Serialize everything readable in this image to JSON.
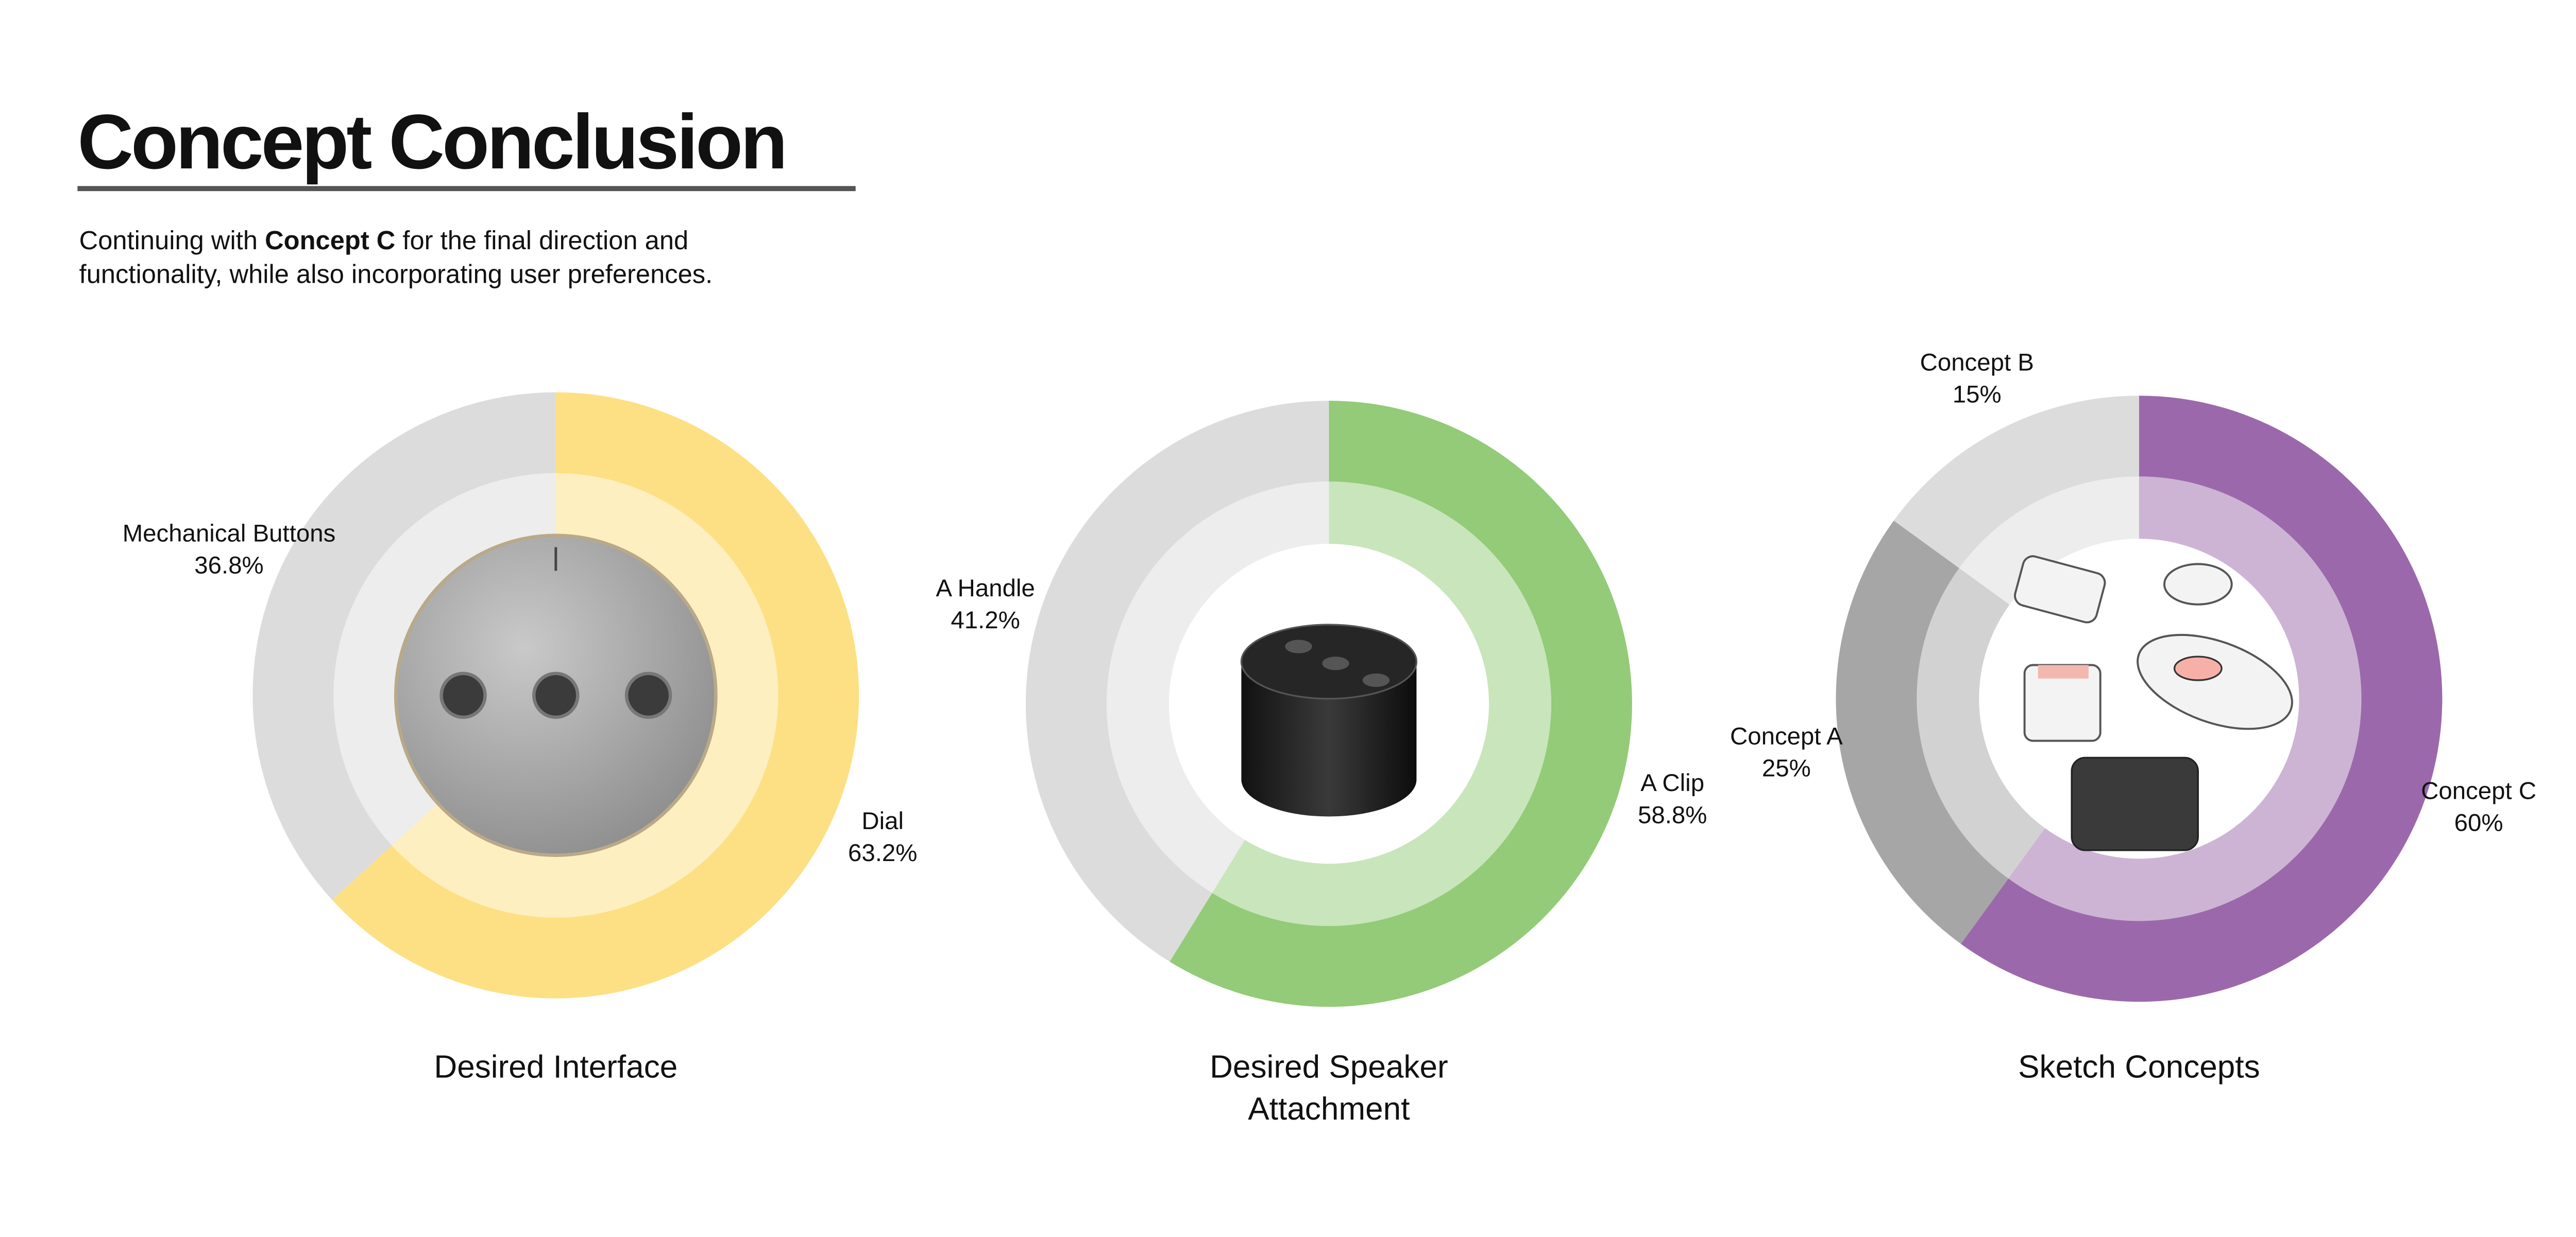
{
  "header": {
    "title": "Concept Conclusion",
    "subtitle": [
      "Continuing with ",
      "Concept C",
      " for the final direction and",
      "functionality, while also incorporating user preferences."
    ]
  },
  "chart_data": [
    {
      "type": "pie",
      "title": "Desired Interface",
      "categories": [
        "Dial",
        "Mechanical Buttons"
      ],
      "values": [
        63.2,
        36.8
      ],
      "value_labels": [
        "63.2%",
        "36.8%"
      ],
      "colors": [
        "#fde084",
        "#dcdcdc"
      ]
    },
    {
      "type": "pie",
      "title": "Desired Speaker Attachment",
      "categories": [
        "A Clip",
        "A Handle"
      ],
      "values": [
        58.8,
        41.2
      ],
      "value_labels": [
        "58.8%",
        "41.2%"
      ],
      "colors": [
        "#93cb78",
        "#dcdcdc"
      ]
    },
    {
      "type": "pie",
      "title": "Sketch Concepts",
      "categories": [
        "Concept C",
        "Concept A",
        "Concept B"
      ],
      "values": [
        60,
        25,
        15
      ],
      "value_labels": [
        "60%",
        "25%",
        "15%"
      ],
      "colors": [
        "#9b69ab",
        "#a6a6a6",
        "#dcdcdc"
      ]
    }
  ]
}
